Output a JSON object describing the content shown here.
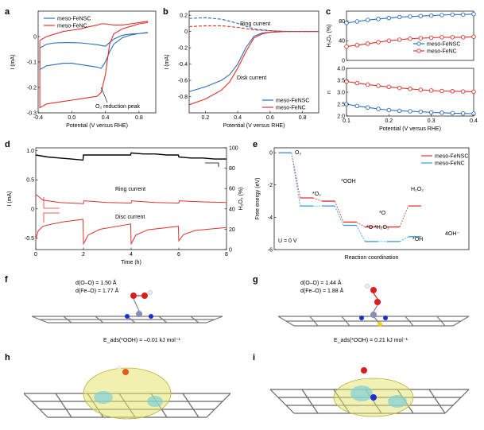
{
  "panels": {
    "a": {
      "label": "a",
      "xlabel": "Potential (V versus RHE)",
      "ylabel": "I (mA)",
      "annotation": "O₂ reduction peak",
      "legend": [
        "meso-FeNSC",
        "meso-FeNC"
      ]
    },
    "b": {
      "label": "b",
      "xlabel": "Potential (V versus RHE)",
      "ylabel": "I (mA)",
      "ring": "Ring current",
      "disk": "Disk current",
      "legend": [
        "meso-FeNSC",
        "meso-FeNC"
      ]
    },
    "c": {
      "label": "c",
      "xlabel": "Potential (V versus RHE)",
      "ylabel_top": "H₂O₂ (%)",
      "ylabel_bottom": "n",
      "legend": [
        "meso-FeNSC",
        "meso-FeNC"
      ]
    },
    "d": {
      "label": "d",
      "xlabel": "Time (h)",
      "ylabel_left": "I (mA)",
      "ylabel_right": "H₂O₂ (%)",
      "ring": "Ring current",
      "disc": "Disc current"
    },
    "e": {
      "label": "e",
      "xlabel": "Reaction coordination",
      "ylabel": "Free energy (eV)",
      "legend": [
        "meso-FeNSC",
        "meso-FeNC"
      ],
      "u_label": "U = 0 V",
      "species": [
        "O₂",
        "*O₂",
        "*OOH",
        "*O",
        "*O",
        "H₂O₂",
        "*H₂O₂",
        "*OH",
        "4OH⁻"
      ]
    },
    "f": {
      "label": "f",
      "d_oo": "d(O–O) = 1.50 Å",
      "d_feo": "d(Fe–O) = 1.77 Å",
      "eads": "E_ads(*OOH) = –0.01 kJ mol⁻¹"
    },
    "g": {
      "label": "g",
      "d_oo": "d(O–O) = 1.44 Å",
      "d_feo": "d(Fe–O) = 1.88 Å",
      "eads": "E_ads(*OOH) = 0.21 kJ mol⁻¹"
    },
    "h": {
      "label": "h"
    },
    "i": {
      "label": "i"
    }
  },
  "colors": {
    "blue": "#2a6ebb",
    "red": "#e0322e",
    "black": "#000000",
    "teal": "#2e9bd6",
    "gray": "#555555"
  },
  "chart_data": [
    {
      "id": "a",
      "type": "line",
      "xlim": [
        -0.4,
        1.0
      ],
      "ylim": [
        -0.3,
        0.1
      ],
      "xticks": [
        "-0.4",
        "0.0",
        "0.4",
        "0.8"
      ],
      "yticks": [
        "0",
        "-0.1",
        "-0.2",
        "-0.3"
      ],
      "series": [
        {
          "name": "meso-FeNSC",
          "color": "#2a6ebb",
          "x": [
            -0.38,
            -0.3,
            -0.2,
            -0.1,
            0,
            0.1,
            0.2,
            0.3,
            0.35,
            0.4,
            0.5,
            0.6,
            0.7,
            0.8,
            0.9,
            0.9,
            0.8,
            0.7,
            0.6,
            0.5,
            0.45,
            0.4,
            0.35,
            0.3,
            0.2,
            0.1,
            0,
            -0.1,
            -0.2,
            -0.3,
            -0.38,
            -0.38
          ],
          "y": [
            -0.045,
            -0.03,
            -0.025,
            -0.024,
            -0.024,
            -0.025,
            -0.028,
            -0.032,
            -0.035,
            -0.038,
            -0.01,
            0.005,
            0.01,
            0.012,
            0.015,
            0.016,
            0.012,
            0.006,
            -0.005,
            -0.03,
            -0.06,
            -0.1,
            -0.125,
            -0.12,
            -0.115,
            -0.11,
            -0.105,
            -0.105,
            -0.11,
            -0.115,
            -0.13,
            -0.045
          ]
        },
        {
          "name": "meso-FeNC",
          "color": "#e0322e",
          "x": [
            -0.38,
            -0.3,
            -0.2,
            -0.1,
            0,
            0.1,
            0.2,
            0.3,
            0.35,
            0.4,
            0.5,
            0.6,
            0.7,
            0.8,
            0.9,
            0.9,
            0.8,
            0.7,
            0.6,
            0.5,
            0.45,
            0.4,
            0.35,
            0.3,
            0.2,
            0.1,
            0,
            -0.1,
            -0.2,
            -0.3,
            -0.38,
            -0.38
          ],
          "y": [
            -0.015,
            0,
            0.01,
            0.02,
            0.025,
            0.03,
            0.038,
            0.045,
            0.05,
            0.05,
            0.045,
            0.045,
            0.05,
            0.055,
            0.06,
            0.055,
            0.05,
            0.04,
            0.03,
            0.01,
            -0.03,
            -0.15,
            -0.22,
            -0.235,
            -0.24,
            -0.245,
            -0.25,
            -0.255,
            -0.26,
            -0.265,
            -0.28,
            -0.015
          ]
        }
      ]
    },
    {
      "id": "b",
      "type": "line",
      "xlim": [
        0.1,
        0.9
      ],
      "ylim": [
        -1.0,
        0.25
      ],
      "xticks": [
        "0.2",
        "0.4",
        "0.6",
        "0.8"
      ],
      "yticks": [
        "0.2",
        "0",
        "-0.2",
        "-0.4",
        "-0.6",
        "-0.8"
      ],
      "series": [
        {
          "name": "meso-FeNSC",
          "color": "#2a6ebb",
          "x": [
            0.1,
            0.2,
            0.3,
            0.35,
            0.4,
            0.45,
            0.5,
            0.55,
            0.6,
            0.7,
            0.8,
            0.9
          ],
          "y": [
            -0.74,
            -0.68,
            -0.6,
            -0.53,
            -0.4,
            -0.2,
            -0.06,
            -0.02,
            -0.01,
            0,
            0,
            0
          ]
        },
        {
          "name": "meso-FeNC",
          "color": "#e0322e",
          "x": [
            0.1,
            0.2,
            0.3,
            0.35,
            0.4,
            0.45,
            0.5,
            0.55,
            0.6,
            0.7,
            0.8,
            0.9
          ],
          "y": [
            -0.9,
            -0.83,
            -0.72,
            -0.62,
            -0.45,
            -0.25,
            -0.08,
            -0.03,
            -0.01,
            0,
            0,
            0
          ]
        },
        {
          "name": "",
          "color": "#2a6ebb",
          "dash": true,
          "x": [
            0.1,
            0.2,
            0.3,
            0.4,
            0.5,
            0.6,
            0.7,
            0.8,
            0.9
          ],
          "y": [
            0.16,
            0.17,
            0.15,
            0.1,
            0.03,
            0.01,
            0,
            0,
            0
          ]
        },
        {
          "name": "",
          "color": "#e0322e",
          "dash": true,
          "x": [
            0.1,
            0.2,
            0.3,
            0.4,
            0.5,
            0.6,
            0.7,
            0.8,
            0.9
          ],
          "y": [
            0.06,
            0.07,
            0.07,
            0.05,
            0.02,
            0.01,
            0,
            0,
            0
          ]
        }
      ]
    },
    {
      "id": "c_top",
      "type": "line",
      "xlim": [
        0.1,
        0.4
      ],
      "ylim": [
        0,
        100
      ],
      "yticks": [
        "80",
        "40",
        "0"
      ],
      "series": [
        {
          "name": "meso-FeNSC",
          "color": "#2a6ebb",
          "x": [
            0.1,
            0.125,
            0.15,
            0.175,
            0.2,
            0.225,
            0.25,
            0.275,
            0.3,
            0.325,
            0.35,
            0.375,
            0.4
          ],
          "y": [
            76,
            79,
            82,
            84,
            86,
            88,
            89,
            90,
            91,
            92,
            93,
            93,
            94
          ]
        },
        {
          "name": "meso-FeNC",
          "color": "#e0322e",
          "x": [
            0.1,
            0.125,
            0.15,
            0.175,
            0.2,
            0.225,
            0.25,
            0.275,
            0.3,
            0.325,
            0.35,
            0.375,
            0.4
          ],
          "y": [
            28,
            31,
            34,
            37,
            40,
            42,
            44,
            45,
            46,
            47,
            47,
            47,
            48
          ]
        }
      ]
    },
    {
      "id": "c_bottom",
      "type": "line",
      "xlim": [
        0.1,
        0.4
      ],
      "ylim": [
        2.0,
        4.0
      ],
      "xticks": [
        "0.1",
        "0.2",
        "0.3",
        "0.4"
      ],
      "yticks": [
        "4.0",
        "3.5",
        "3.0",
        "2.5",
        "2.0"
      ],
      "series": [
        {
          "name": "meso-FeNSC",
          "color": "#2a6ebb",
          "x": [
            0.1,
            0.125,
            0.15,
            0.175,
            0.2,
            0.225,
            0.25,
            0.275,
            0.3,
            0.325,
            0.35,
            0.375,
            0.4
          ],
          "y": [
            2.5,
            2.42,
            2.36,
            2.3,
            2.25,
            2.22,
            2.2,
            2.18,
            2.15,
            2.14,
            2.12,
            2.11,
            2.1
          ]
        },
        {
          "name": "meso-FeNC",
          "color": "#e0322e",
          "x": [
            0.1,
            0.125,
            0.15,
            0.175,
            0.2,
            0.225,
            0.25,
            0.275,
            0.3,
            0.325,
            0.35,
            0.375,
            0.4
          ],
          "y": [
            3.45,
            3.38,
            3.32,
            3.27,
            3.22,
            3.18,
            3.14,
            3.1,
            3.07,
            3.05,
            3.04,
            3.03,
            3.02
          ]
        }
      ]
    },
    {
      "id": "d",
      "type": "line",
      "xlim": [
        0,
        8
      ],
      "ylim_left": [
        -0.7,
        1.05
      ],
      "ylim_right": [
        0,
        100
      ],
      "xticks": [
        "0",
        "2",
        "4",
        "6",
        "8"
      ],
      "yticks_left": [
        "1.0",
        "0.5",
        "0",
        "-0.5"
      ],
      "yticks_right": [
        "100",
        "80",
        "60",
        "40",
        "20",
        "0"
      ],
      "series": [
        {
          "name": "",
          "color": "#000000",
          "axis": "right",
          "x": [
            0,
            0.5,
            1,
            1.5,
            1.98,
            2.0,
            2.5,
            3,
            3.5,
            3.98,
            4.0,
            4.5,
            5,
            5.5,
            5.98,
            6.0,
            6.5,
            7,
            7.5,
            8
          ],
          "y": [
            93,
            91,
            90,
            89,
            88,
            93,
            93,
            93,
            93,
            93,
            95,
            94,
            94,
            93,
            93,
            91,
            90,
            90,
            89,
            89
          ]
        },
        {
          "name": "",
          "color": "#e0322e",
          "axis": "left",
          "x": [
            0,
            0.3,
            1,
            2,
            2.02,
            3,
            4,
            4.02,
            5,
            6,
            6.02,
            7,
            8
          ],
          "y": [
            0.25,
            0.15,
            0.11,
            0.09,
            0.14,
            0.11,
            0.1,
            0.14,
            0.11,
            0.1,
            0.14,
            0.12,
            0.11
          ]
        },
        {
          "name": "",
          "color": "#e0322e",
          "axis": "left",
          "x": [
            0,
            0.1,
            0.3,
            0.7,
            1.2,
            1.98,
            2.0,
            2.2,
            2.7,
            3.98,
            4.0,
            4.2,
            4.7,
            5.98,
            6.0,
            6.2,
            6.7,
            8
          ],
          "y": [
            -0.52,
            -0.38,
            -0.3,
            -0.26,
            -0.22,
            -0.18,
            -0.6,
            -0.45,
            -0.35,
            -0.26,
            -0.6,
            -0.45,
            -0.36,
            -0.3,
            -0.55,
            -0.44,
            -0.37,
            -0.32
          ]
        }
      ]
    },
    {
      "id": "e",
      "type": "line",
      "ylim": [
        -6,
        0.3
      ],
      "yticks": [
        "0",
        "-2",
        "-4",
        "-6"
      ],
      "series": [
        {
          "name": "meso-FeNSC",
          "color": "#e0322e",
          "levels": [
            0,
            -2.8,
            -3.0,
            -4.3,
            -3.0,
            -4.6,
            -3.9,
            -4.6,
            -3.3
          ]
        },
        {
          "name": "meso-FeNC",
          "color": "#2e9bd6",
          "levels": [
            0,
            -3.3,
            -3.3,
            -4.5,
            -3.3,
            -5.5,
            -4.6,
            -5.5,
            -5.2
          ]
        }
      ]
    }
  ]
}
